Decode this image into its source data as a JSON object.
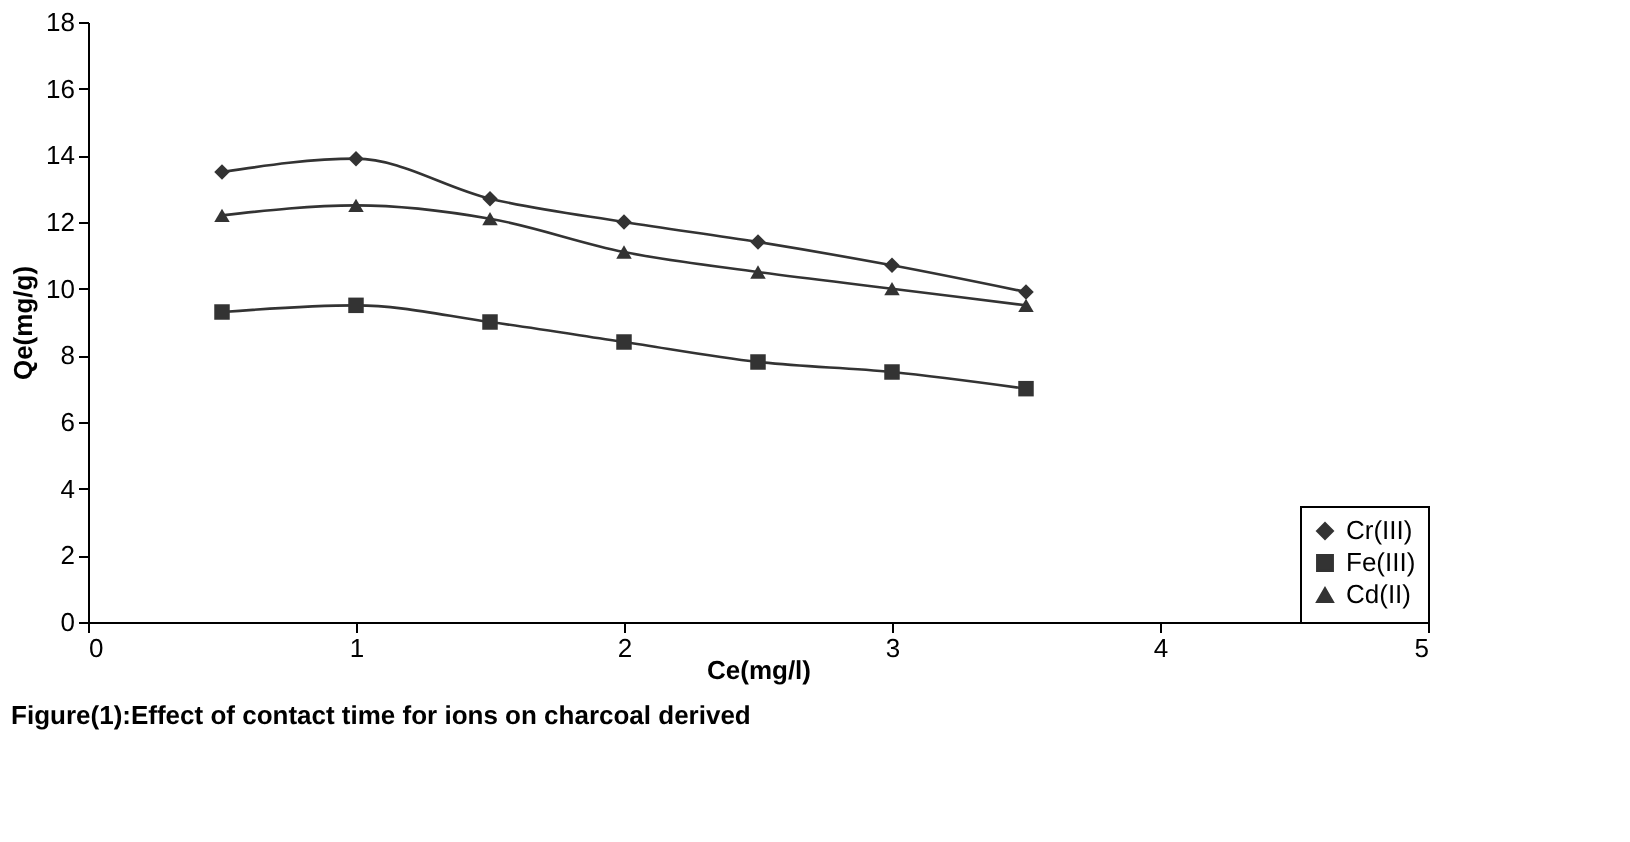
{
  "chart_data": {
    "type": "line",
    "xlabel": "Ce(mg/l)",
    "ylabel": "Qe(mg/g)",
    "x": [
      0.5,
      1,
      1.5,
      2,
      2.5,
      3,
      3.5
    ],
    "series": [
      {
        "name": "Cr(III)",
        "color": "#333333",
        "marker": "diamond",
        "values": [
          13.5,
          13.9,
          12.7,
          12.0,
          11.4,
          10.7,
          9.9
        ]
      },
      {
        "name": "Fe(III)",
        "color": "#333333",
        "marker": "square",
        "values": [
          9.3,
          9.5,
          9.0,
          8.4,
          7.8,
          7.5,
          7.0
        ]
      },
      {
        "name": "Cd(II)",
        "color": "#333333",
        "marker": "triangle",
        "values": [
          12.2,
          12.5,
          12.1,
          11.1,
          10.5,
          10.0,
          9.5
        ]
      }
    ],
    "xlim": [
      0,
      5
    ],
    "xticks": [
      0,
      1,
      2,
      3,
      4,
      5
    ],
    "ylim": [
      0,
      18
    ],
    "yticks": [
      0,
      2,
      4,
      6,
      8,
      10,
      12,
      14,
      16,
      18
    ],
    "grid": false,
    "legend": "bottom right",
    "line_style": "solid",
    "annotations": [
      "Figure(1):Effect of contact time for ions on  charcoal derived"
    ]
  }
}
